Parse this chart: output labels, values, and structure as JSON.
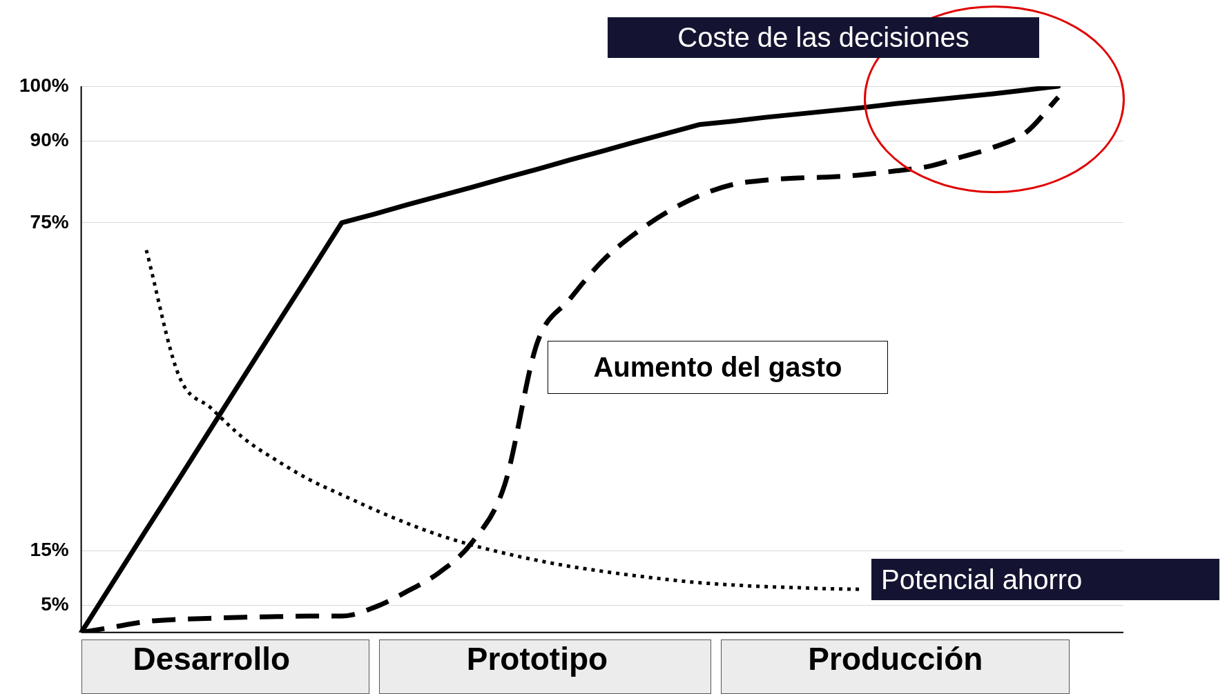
{
  "chart_data": {
    "type": "line",
    "categories": [
      null,
      null,
      null,
      null,
      "Desarrollo",
      null,
      null,
      null,
      null,
      null,
      null,
      null,
      null,
      null,
      "Prototipo",
      null,
      null,
      null,
      null,
      null,
      null,
      null,
      null,
      null,
      null,
      "Producción",
      null,
      null,
      null,
      null,
      null,
      null,
      null
    ],
    "ylim": [
      0,
      100
    ],
    "yticks": [
      {
        "value": 5,
        "label": "5%"
      },
      {
        "value": 15,
        "label": "15%"
      },
      {
        "value": 75,
        "label": "75%"
      },
      {
        "value": 90,
        "label": "90%"
      },
      {
        "value": 100,
        "label": "100%"
      }
    ],
    "grid": "y",
    "legend": false,
    "marker": "none",
    "series": [
      {
        "name": "Coste de las decisiones",
        "color": "#000000",
        "line_style": "solid",
        "values": [
          0,
          9.4,
          18.8,
          28.1,
          37.5,
          46.9,
          56.3,
          65.6,
          75,
          76.6,
          78.3,
          79.9,
          81.5,
          83.2,
          84.8,
          86.5,
          88.1,
          89.8,
          91.4,
          93,
          93.6,
          94.3,
          94.9,
          95.5,
          96.1,
          96.8,
          97.4,
          98,
          98.6,
          99.3,
          100,
          null,
          null
        ]
      },
      {
        "name": "Aumento del gasto",
        "color": "#000000",
        "line_style": "dashed",
        "values": [
          0,
          1,
          2,
          2.4,
          2.6,
          2.8,
          2.9,
          3,
          3,
          4.6,
          7.5,
          11,
          16.5,
          27,
          53,
          61,
          68,
          73,
          77,
          80,
          82,
          82.8,
          83.2,
          83.4,
          83.8,
          84.5,
          85.3,
          87,
          88.8,
          91.5,
          98,
          null,
          null
        ]
      },
      {
        "name": "Potencial ahorro",
        "color": "#000000",
        "line_style": "dotted",
        "values": [
          null,
          null,
          70,
          47,
          41,
          35.5,
          31.5,
          28,
          25.2,
          22.5,
          20,
          17.8,
          16,
          14.5,
          13.2,
          12.1,
          11.2,
          10.4,
          9.7,
          9.1,
          8.7,
          8.4,
          8.2,
          8,
          7.9,
          null,
          null,
          null,
          null,
          null,
          null,
          null,
          null
        ]
      }
    ]
  }
}
